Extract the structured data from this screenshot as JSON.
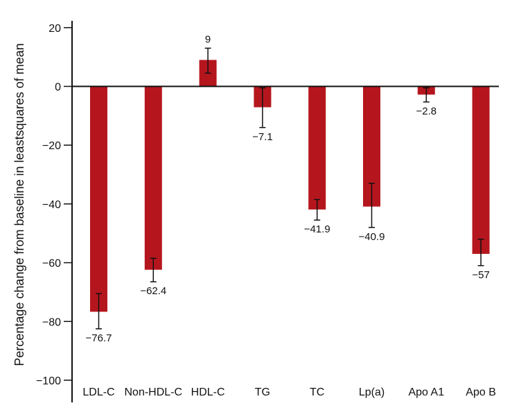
{
  "chart_data": {
    "type": "bar",
    "ylabel": "Percentage change from baseline in leastsquares of mean",
    "xlabel": "",
    "ylim": [
      -100,
      20
    ],
    "yticks": [
      20,
      0,
      -20,
      -40,
      -60,
      -80,
      -100
    ],
    "ytick_labels": [
      "20",
      "0",
      "−20",
      "−40",
      "−60",
      "−80",
      "−100"
    ],
    "categories": [
      "LDL-C",
      "Non-HDL-C",
      "HDL-C",
      "TG",
      "TC",
      "Lp(a)",
      "Apo A1",
      "Apo B"
    ],
    "values": [
      -76.7,
      -62.4,
      9,
      -7.1,
      -41.9,
      -40.9,
      -2.8,
      -57
    ],
    "value_labels": [
      "−76.7",
      "−62.4",
      "9",
      "−7.1",
      "−41.9",
      "−40.9",
      "−2.8",
      "−57"
    ],
    "error_low": [
      -82.5,
      -66.5,
      4.5,
      -14,
      -45.5,
      -48,
      -5.3,
      -61
    ],
    "error_high": [
      -70.5,
      -58.5,
      13,
      -0.5,
      -38.5,
      -33,
      -0.5,
      -52
    ],
    "bar_color": "#b5161e",
    "grid": false,
    "legend": "none"
  }
}
